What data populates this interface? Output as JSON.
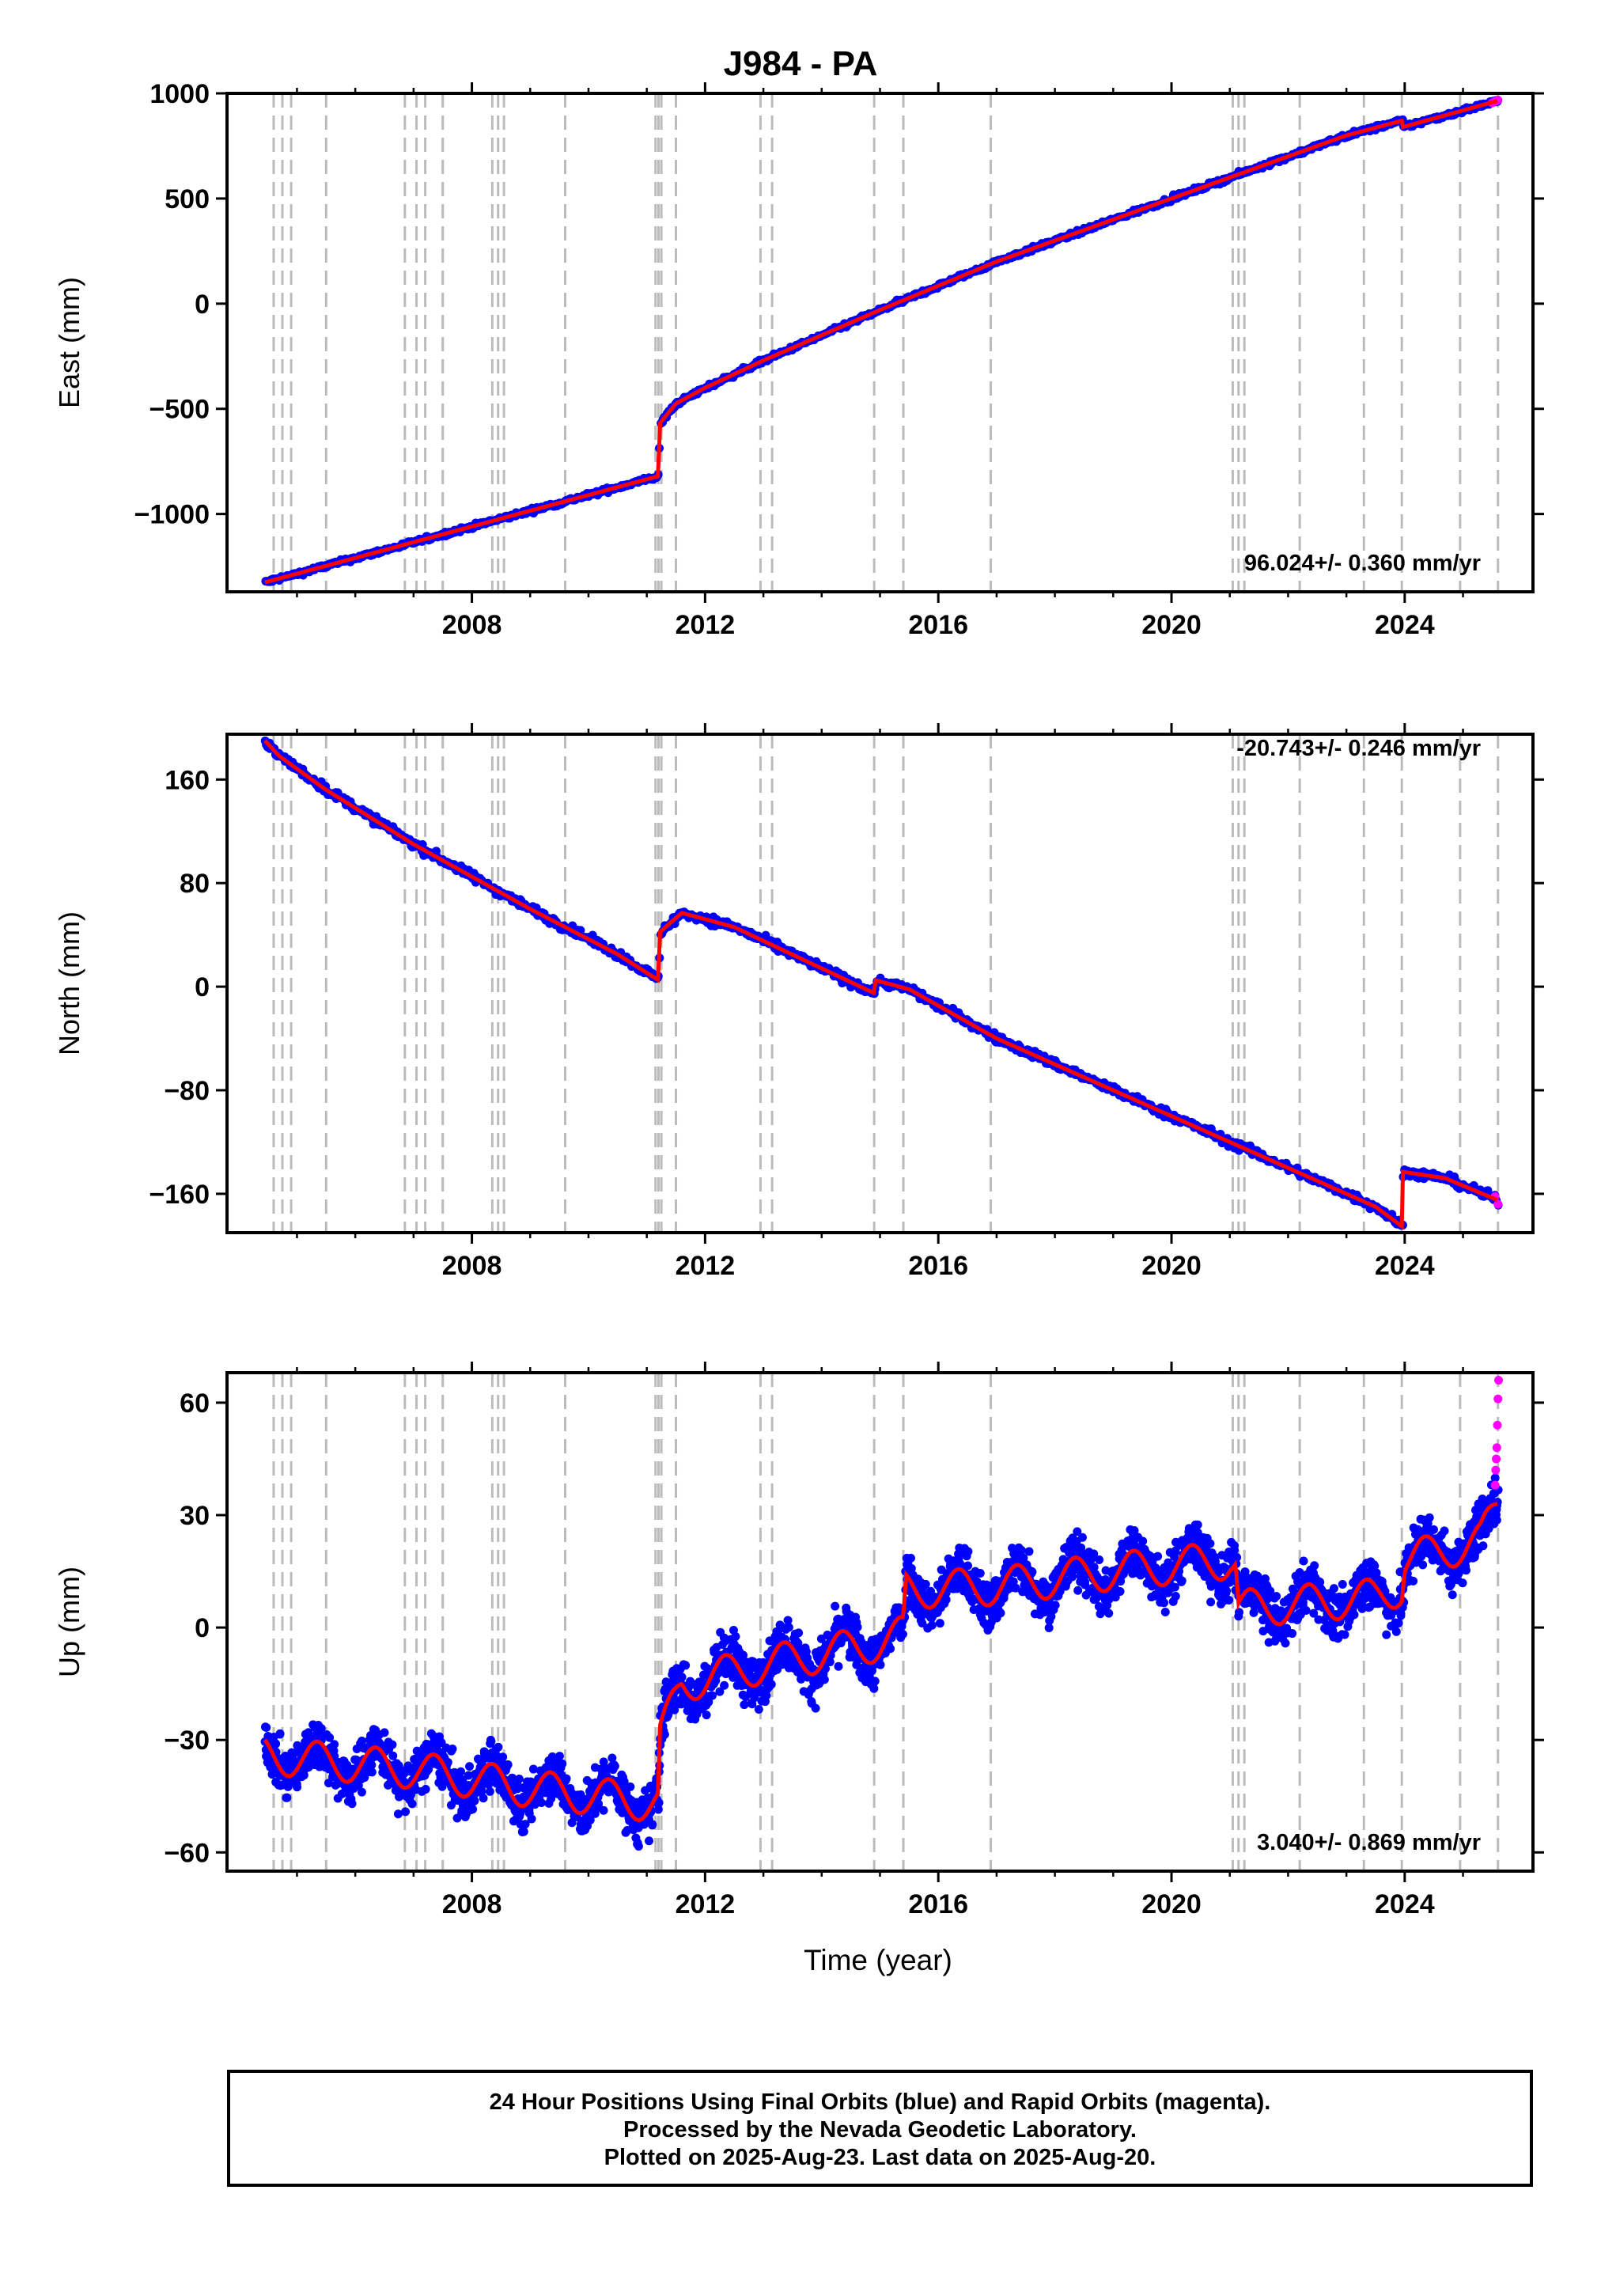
{
  "title": "J984 - PA",
  "xlabel": "Time (year)",
  "colors": {
    "final": "#0000ff",
    "rapid": "#ff00ff",
    "model": "#ff0000",
    "steps": "#bbbbbb"
  },
  "footer": {
    "line1": "24 Hour Positions Using Final Orbits (blue) and Rapid Orbits (magenta).",
    "line2": "Processed by the Nevada Geodetic Laboratory.",
    "line3": "Plotted on 2025-Aug-23. Last data on 2025-Aug-20."
  },
  "chart_data": [
    {
      "type": "scatter",
      "panel": "east",
      "ylabel": "East (mm)",
      "rate_label": "96.024+/- 0.360 mm/yr",
      "xlim": [
        2003.8,
        2026.2
      ],
      "ylim": [
        -1370,
        1000
      ],
      "xticks": [
        2008,
        2012,
        2016,
        2020,
        2024
      ],
      "yticks": [
        -1000,
        -500,
        0,
        500,
        1000
      ],
      "yticklabels": [
        "−1000",
        "−500",
        "0",
        "500",
        "1000"
      ],
      "trend_knots": [
        [
          2004.45,
          -1325
        ],
        [
          2011.2,
          -820
        ],
        [
          2011.22,
          -570
        ],
        [
          2011.5,
          -475
        ],
        [
          2012.0,
          -400
        ],
        [
          2013.0,
          -270
        ],
        [
          2015.0,
          -30
        ],
        [
          2017.0,
          200
        ],
        [
          2020.0,
          500
        ],
        [
          2023.0,
          800
        ],
        [
          2023.95,
          870
        ],
        [
          2023.97,
          840
        ],
        [
          2025.6,
          965
        ]
      ],
      "scatter_noise": 8,
      "rapid_points": [
        [
          2025.5,
          955
        ],
        [
          2025.55,
          962
        ],
        [
          2025.6,
          968
        ]
      ]
    },
    {
      "type": "scatter",
      "panel": "north",
      "ylabel": "North (mm)",
      "rate_label": "-20.743+/- 0.246 mm/yr",
      "xlim": [
        2003.8,
        2026.2
      ],
      "ylim": [
        -190,
        195
      ],
      "xticks": [
        2008,
        2012,
        2016,
        2020,
        2024
      ],
      "yticks": [
        -160,
        -80,
        0,
        80,
        160
      ],
      "yticklabels": [
        "−160",
        "−80",
        "0",
        "80",
        "160"
      ],
      "trend_knots": [
        [
          2004.45,
          190
        ],
        [
          2004.7,
          178
        ],
        [
          2005.5,
          152
        ],
        [
          2007.0,
          110
        ],
        [
          2009.0,
          60
        ],
        [
          2010.5,
          25
        ],
        [
          2011.2,
          5
        ],
        [
          2011.22,
          42
        ],
        [
          2011.6,
          57
        ],
        [
          2012.5,
          46
        ],
        [
          2014.9,
          -5
        ],
        [
          2014.92,
          5
        ],
        [
          2015.5,
          -2
        ],
        [
          2017.0,
          -40
        ],
        [
          2020.0,
          -100
        ],
        [
          2023.5,
          -170
        ],
        [
          2023.95,
          -185
        ],
        [
          2023.97,
          -143
        ],
        [
          2024.7,
          -148
        ],
        [
          2025.6,
          -165
        ]
      ],
      "scatter_noise": 2.5,
      "rapid_points": [
        [
          2025.55,
          -162
        ],
        [
          2025.6,
          -168
        ]
      ]
    },
    {
      "type": "scatter",
      "panel": "up",
      "ylabel": "Up (mm)",
      "rate_label": "3.040+/- 0.869 mm/yr",
      "xlim": [
        2003.8,
        2026.2
      ],
      "ylim": [
        -65,
        68
      ],
      "xticks": [
        2008,
        2012,
        2016,
        2020,
        2024
      ],
      "yticks": [
        -60,
        -30,
        0,
        30,
        60
      ],
      "yticklabels": [
        "−60",
        "−30",
        "0",
        "30",
        "60"
      ],
      "trend_knots": [
        [
          2004.45,
          -34
        ],
        [
          2007.0,
          -38
        ],
        [
          2009.0,
          -43
        ],
        [
          2011.2,
          -47
        ],
        [
          2011.22,
          -30
        ],
        [
          2011.6,
          -15
        ],
        [
          2013.0,
          -10
        ],
        [
          2015.0,
          -4
        ],
        [
          2015.4,
          -2
        ],
        [
          2015.45,
          10
        ],
        [
          2017.0,
          11
        ],
        [
          2019.0,
          15
        ],
        [
          2021.0,
          18
        ],
        [
          2021.1,
          17
        ],
        [
          2021.15,
          5
        ],
        [
          2023.5,
          8
        ],
        [
          2023.95,
          11
        ],
        [
          2024.0,
          18
        ],
        [
          2025.3,
          23
        ],
        [
          2025.6,
          33
        ]
      ],
      "seasonal_amplitude": 5,
      "scatter_noise": 5,
      "rapid_points": [
        [
          2025.55,
          38
        ],
        [
          2025.56,
          42
        ],
        [
          2025.57,
          45
        ],
        [
          2025.58,
          48
        ],
        [
          2025.59,
          54
        ],
        [
          2025.6,
          61
        ],
        [
          2025.61,
          66
        ]
      ]
    }
  ],
  "step_epochs": [
    2004.6,
    2004.75,
    2004.9,
    2005.5,
    2006.85,
    2007.05,
    2007.2,
    2007.5,
    2008.35,
    2008.45,
    2008.55,
    2009.6,
    2011.15,
    2011.2,
    2011.25,
    2011.5,
    2012.95,
    2013.15,
    2014.9,
    2015.4,
    2016.9,
    2021.05,
    2021.15,
    2021.25,
    2022.2,
    2023.3,
    2023.95,
    2024.95,
    2025.6
  ]
}
